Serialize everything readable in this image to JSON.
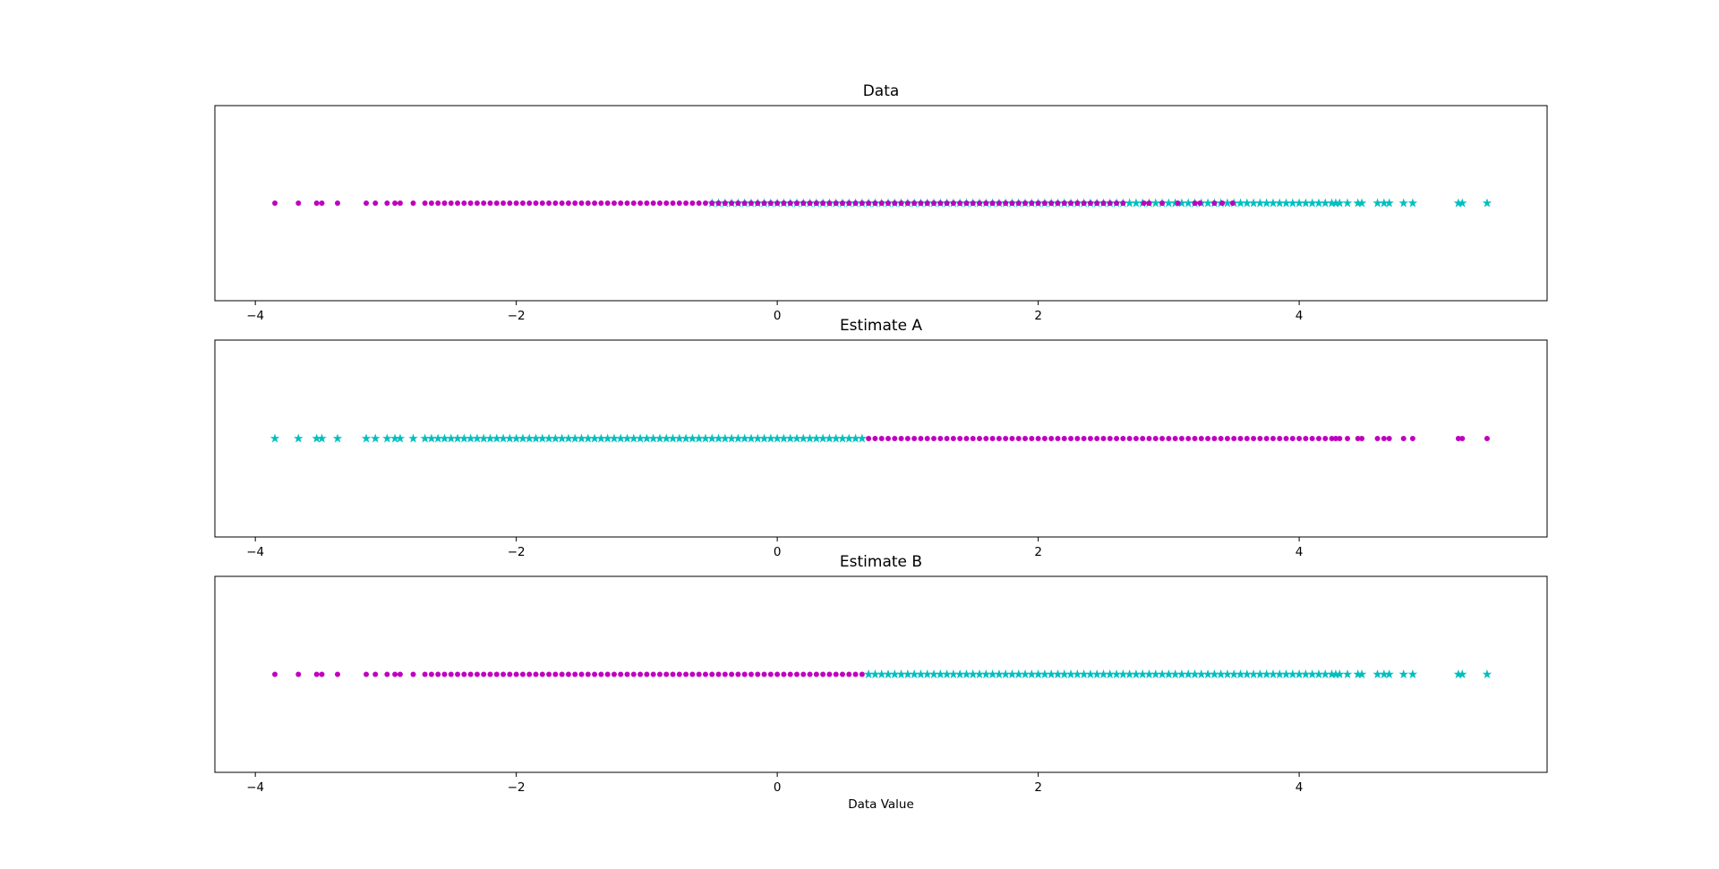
{
  "chart_data": [
    {
      "type": "scatter",
      "title": "Data",
      "xlim": [
        -4.31,
        5.9
      ],
      "xticks": [
        {
          "value": -4,
          "label": "−4"
        },
        {
          "value": -2,
          "label": "−2"
        },
        0,
        2,
        4
      ],
      "series": [
        {
          "color": "#00bfbf",
          "marker": "*",
          "x": [
            -0.5,
            -0.45,
            -0.4,
            -0.35,
            -0.3,
            -0.25,
            -0.2,
            -0.15,
            -0.1,
            -0.05,
            0,
            0.05,
            0.1,
            0.15,
            0.2,
            0.25,
            0.3,
            0.35,
            0.4,
            0.45,
            0.5,
            0.55,
            0.6,
            0.65,
            0.7,
            0.75,
            0.8,
            0.85,
            0.9,
            0.95,
            1,
            1.05,
            1.1,
            1.15,
            1.2,
            1.25,
            1.3,
            1.35,
            1.4,
            1.45,
            1.5,
            1.55,
            1.6,
            1.65,
            1.7,
            1.75,
            1.8,
            1.85,
            1.9,
            1.95,
            2,
            2.05,
            2.1,
            2.15,
            2.2,
            2.25,
            2.3,
            2.35,
            2.4,
            2.45,
            2.5,
            2.55,
            2.6,
            2.65,
            2.7,
            2.75,
            2.8,
            2.85,
            2.9,
            2.95,
            3,
            3.05,
            3.1,
            3.15,
            3.2,
            3.25,
            3.3,
            3.35,
            3.4,
            3.45,
            3.5,
            3.55,
            3.6,
            3.65,
            3.7,
            3.75,
            3.8,
            3.85,
            3.9,
            3.95,
            4,
            4.05,
            4.1,
            4.15,
            4.2,
            4.25,
            4.28,
            4.31,
            4.37,
            4.45,
            4.48,
            4.6,
            4.65,
            4.69,
            4.8,
            4.87,
            5.22,
            5.25,
            5.44
          ]
        },
        {
          "color": "#bf00bf",
          "marker": "o",
          "x": [
            -3.85,
            -3.67,
            -3.53,
            -3.49,
            -3.37,
            -3.15,
            -3.08,
            -2.99,
            -2.93,
            -2.89,
            -2.79,
            -2.7,
            -2.65,
            -2.6,
            -2.55,
            -2.5,
            -2.45,
            -2.4,
            -2.35,
            -2.3,
            -2.25,
            -2.2,
            -2.15,
            -2.1,
            -2.05,
            -2,
            -1.95,
            -1.9,
            -1.85,
            -1.8,
            -1.75,
            -1.7,
            -1.65,
            -1.6,
            -1.55,
            -1.5,
            -1.45,
            -1.4,
            -1.35,
            -1.3,
            -1.25,
            -1.2,
            -1.15,
            -1.1,
            -1.05,
            -1,
            -0.95,
            -0.9,
            -0.85,
            -0.8,
            -0.75,
            -0.7,
            -0.65,
            -0.6,
            -0.55,
            -0.5,
            -0.45,
            -0.4,
            -0.35,
            -0.3,
            -0.25,
            -0.2,
            -0.15,
            -0.1,
            -0.05,
            0,
            0.05,
            0.1,
            0.15,
            0.2,
            0.25,
            0.3,
            0.35,
            0.4,
            0.45,
            0.5,
            0.55,
            0.6,
            0.65,
            0.7,
            0.75,
            0.8,
            0.85,
            0.9,
            0.95,
            1,
            1.05,
            1.1,
            1.15,
            1.2,
            1.25,
            1.3,
            1.35,
            1.4,
            1.45,
            1.5,
            1.55,
            1.6,
            1.65,
            1.7,
            1.75,
            1.8,
            1.85,
            1.9,
            1.95,
            2,
            2.05,
            2.1,
            2.15,
            2.2,
            2.25,
            2.3,
            2.35,
            2.4,
            2.45,
            2.5,
            2.55,
            2.6,
            2.65,
            2.81,
            2.85,
            2.95,
            3.07,
            3.2,
            3.24,
            3.35,
            3.41,
            3.49
          ]
        }
      ]
    },
    {
      "type": "scatter",
      "title": "Estimate A",
      "xlim": [
        -4.31,
        5.9
      ],
      "xticks": [
        {
          "value": -4,
          "label": "−4"
        },
        {
          "value": -2,
          "label": "−2"
        },
        0,
        2,
        4
      ],
      "series": [
        {
          "color": "#00bfbf",
          "marker": "*",
          "x": [
            -3.85,
            -3.67,
            -3.53,
            -3.49,
            -3.37,
            -3.15,
            -3.08,
            -2.99,
            -2.93,
            -2.89,
            -2.79,
            -2.7,
            -2.65,
            -2.6,
            -2.55,
            -2.5,
            -2.45,
            -2.4,
            -2.35,
            -2.3,
            -2.25,
            -2.2,
            -2.15,
            -2.1,
            -2.05,
            -2,
            -1.95,
            -1.9,
            -1.85,
            -1.8,
            -1.75,
            -1.7,
            -1.65,
            -1.6,
            -1.55,
            -1.5,
            -1.45,
            -1.4,
            -1.35,
            -1.3,
            -1.25,
            -1.2,
            -1.15,
            -1.1,
            -1.05,
            -1,
            -0.95,
            -0.9,
            -0.85,
            -0.8,
            -0.75,
            -0.7,
            -0.65,
            -0.6,
            -0.55,
            -0.5,
            -0.45,
            -0.4,
            -0.35,
            -0.3,
            -0.25,
            -0.2,
            -0.15,
            -0.1,
            -0.05,
            0,
            0.05,
            0.1,
            0.15,
            0.2,
            0.25,
            0.3,
            0.35,
            0.4,
            0.45,
            0.5,
            0.55,
            0.6,
            0.65
          ]
        },
        {
          "color": "#bf00bf",
          "marker": "o",
          "x": [
            0.7,
            0.75,
            0.8,
            0.85,
            0.9,
            0.95,
            1,
            1.05,
            1.1,
            1.15,
            1.2,
            1.25,
            1.3,
            1.35,
            1.4,
            1.45,
            1.5,
            1.55,
            1.6,
            1.65,
            1.7,
            1.75,
            1.8,
            1.85,
            1.9,
            1.95,
            2,
            2.05,
            2.1,
            2.15,
            2.2,
            2.25,
            2.3,
            2.35,
            2.4,
            2.45,
            2.5,
            2.55,
            2.6,
            2.65,
            2.7,
            2.75,
            2.8,
            2.85,
            2.9,
            2.95,
            3,
            3.05,
            3.1,
            3.15,
            3.2,
            3.25,
            3.3,
            3.35,
            3.4,
            3.45,
            3.5,
            3.55,
            3.6,
            3.65,
            3.7,
            3.75,
            3.8,
            3.85,
            3.9,
            3.95,
            4,
            4.05,
            4.1,
            4.15,
            4.2,
            4.25,
            4.28,
            4.31,
            4.37,
            4.45,
            4.48,
            4.6,
            4.65,
            4.69,
            4.8,
            4.87,
            5.22,
            5.25,
            5.44
          ]
        }
      ]
    },
    {
      "type": "scatter",
      "title": "Estimate B",
      "xlabel": "Data Value",
      "xlim": [
        -4.31,
        5.9
      ],
      "xticks": [
        {
          "value": -4,
          "label": "−4"
        },
        {
          "value": -2,
          "label": "−2"
        },
        0,
        2,
        4
      ],
      "series": [
        {
          "color": "#bf00bf",
          "marker": "o",
          "x": [
            -3.85,
            -3.67,
            -3.53,
            -3.49,
            -3.37,
            -3.15,
            -3.08,
            -2.99,
            -2.93,
            -2.89,
            -2.79,
            -2.7,
            -2.65,
            -2.6,
            -2.55,
            -2.5,
            -2.45,
            -2.4,
            -2.35,
            -2.3,
            -2.25,
            -2.2,
            -2.15,
            -2.1,
            -2.05,
            -2,
            -1.95,
            -1.9,
            -1.85,
            -1.8,
            -1.75,
            -1.7,
            -1.65,
            -1.6,
            -1.55,
            -1.5,
            -1.45,
            -1.4,
            -1.35,
            -1.3,
            -1.25,
            -1.2,
            -1.15,
            -1.1,
            -1.05,
            -1,
            -0.95,
            -0.9,
            -0.85,
            -0.8,
            -0.75,
            -0.7,
            -0.65,
            -0.6,
            -0.55,
            -0.5,
            -0.45,
            -0.4,
            -0.35,
            -0.3,
            -0.25,
            -0.2,
            -0.15,
            -0.1,
            -0.05,
            0,
            0.05,
            0.1,
            0.15,
            0.2,
            0.25,
            0.3,
            0.35,
            0.4,
            0.45,
            0.5,
            0.55,
            0.6,
            0.65
          ]
        },
        {
          "color": "#00bfbf",
          "marker": "*",
          "x": [
            0.7,
            0.75,
            0.8,
            0.85,
            0.9,
            0.95,
            1,
            1.05,
            1.1,
            1.15,
            1.2,
            1.25,
            1.3,
            1.35,
            1.4,
            1.45,
            1.5,
            1.55,
            1.6,
            1.65,
            1.7,
            1.75,
            1.8,
            1.85,
            1.9,
            1.95,
            2,
            2.05,
            2.1,
            2.15,
            2.2,
            2.25,
            2.3,
            2.35,
            2.4,
            2.45,
            2.5,
            2.55,
            2.6,
            2.65,
            2.7,
            2.75,
            2.8,
            2.85,
            2.9,
            2.95,
            3,
            3.05,
            3.1,
            3.15,
            3.2,
            3.25,
            3.3,
            3.35,
            3.4,
            3.45,
            3.5,
            3.55,
            3.6,
            3.65,
            3.7,
            3.75,
            3.8,
            3.85,
            3.9,
            3.95,
            4,
            4.05,
            4.1,
            4.15,
            4.2,
            4.25,
            4.28,
            4.31,
            4.37,
            4.45,
            4.48,
            4.6,
            4.65,
            4.69,
            4.8,
            4.87,
            5.22,
            5.25,
            5.44
          ]
        }
      ]
    }
  ]
}
